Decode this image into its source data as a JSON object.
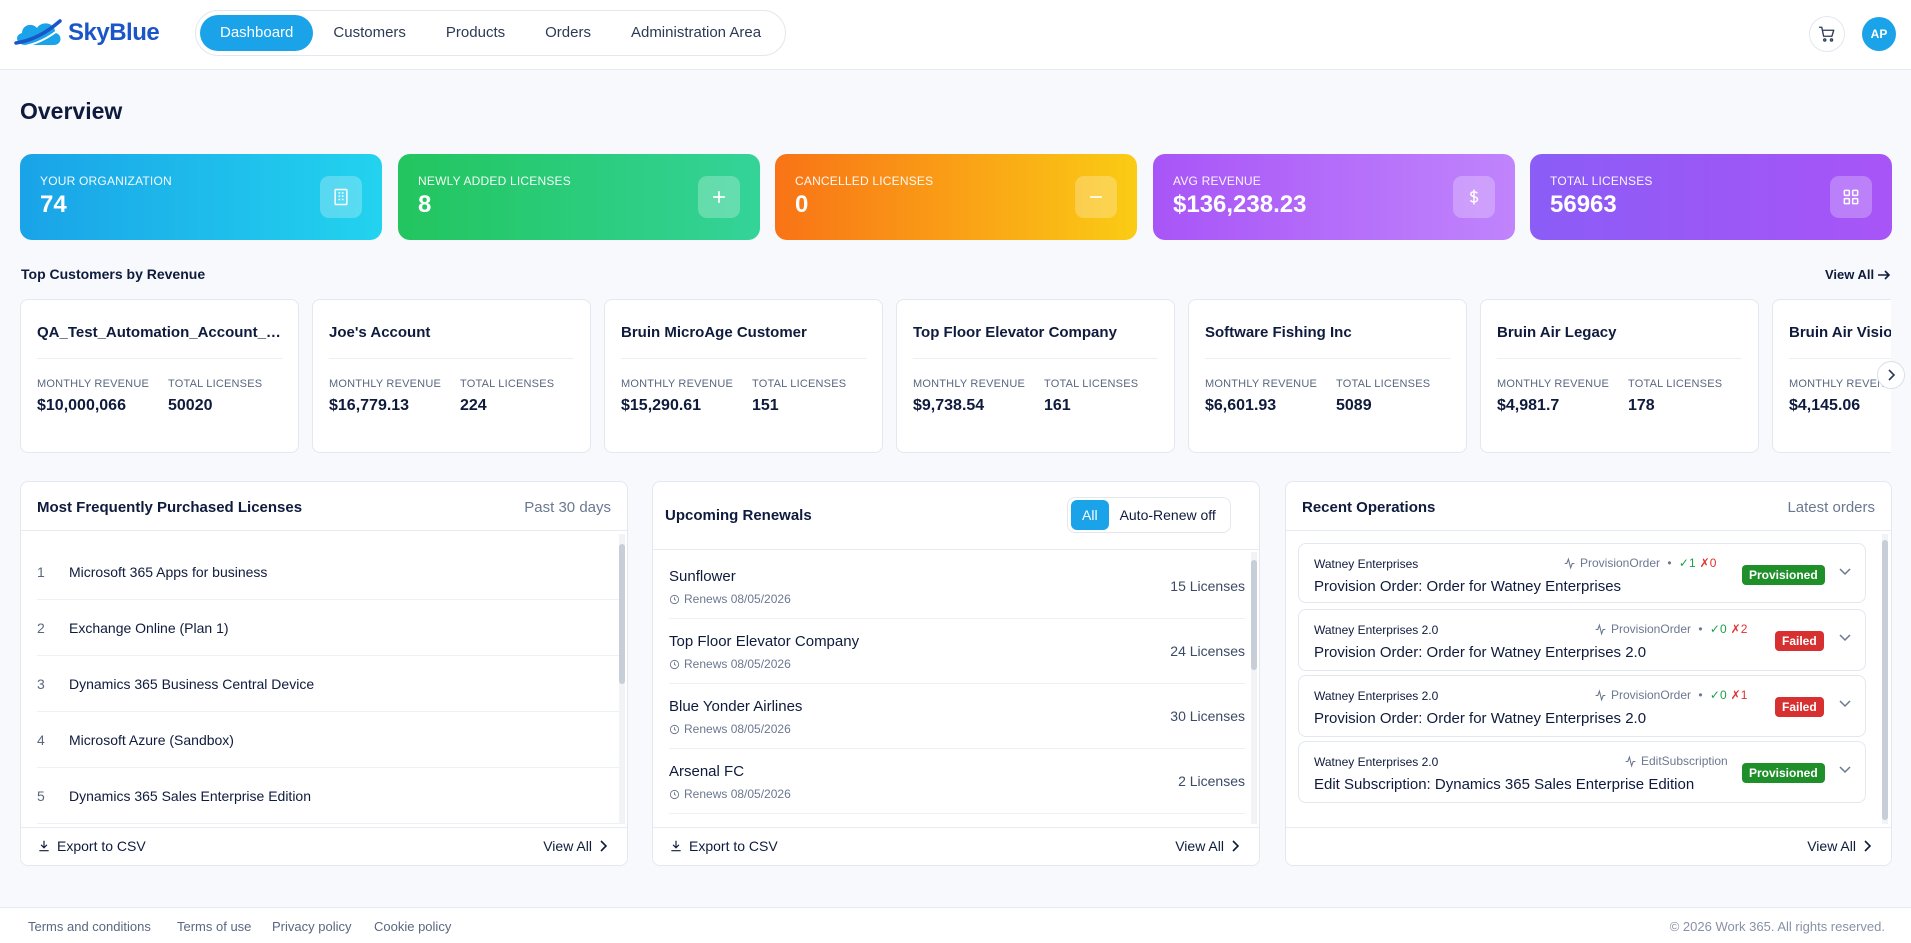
{
  "brand": {
    "name": "SkyBlue"
  },
  "nav": {
    "items": [
      {
        "label": "Dashboard",
        "active": true
      },
      {
        "label": "Customers",
        "active": false
      },
      {
        "label": "Products",
        "active": false
      },
      {
        "label": "Orders",
        "active": false
      },
      {
        "label": "Administration Area",
        "active": false
      }
    ]
  },
  "header": {
    "cart_icon": "cart-icon",
    "avatar_initials": "AP"
  },
  "page": {
    "title": "Overview"
  },
  "stats": [
    {
      "label": "Your Organization",
      "value": "74",
      "icon": "building-icon",
      "gradient": [
        "#1aa3e8",
        "#22d3ee"
      ]
    },
    {
      "label": "Newly Added Licenses",
      "value": "8",
      "icon": "plus-icon",
      "gradient": [
        "#22c55e",
        "#34d399"
      ]
    },
    {
      "label": "Cancelled Licenses",
      "value": "0",
      "icon": "minus-icon",
      "gradient": [
        "#f97316",
        "#facc15"
      ]
    },
    {
      "label": "Avg Revenue",
      "value": "$136,238.23",
      "icon": "dollar-icon",
      "gradient": [
        "#a855f7",
        "#c084fc"
      ]
    },
    {
      "label": "Total Licenses",
      "value": "56963",
      "icon": "grid-icon",
      "gradient": [
        "#8b5cf6",
        "#a855f7"
      ]
    }
  ],
  "top_customers": {
    "title": "Top Customers by Revenue",
    "view_all": "View All",
    "monthly_label": "Monthly Revenue",
    "licenses_label": "Total Licenses",
    "items": [
      {
        "name": "QA_Test_Automation_Account_New",
        "monthly": "$10,000,066",
        "licenses": "50020"
      },
      {
        "name": "Joe's Account",
        "monthly": "$16,779.13",
        "licenses": "224"
      },
      {
        "name": "Bruin MicroAge Customer",
        "monthly": "$15,290.61",
        "licenses": "151"
      },
      {
        "name": "Top Floor Elevator Company",
        "monthly": "$9,738.54",
        "licenses": "161"
      },
      {
        "name": "Software Fishing Inc",
        "monthly": "$6,601.93",
        "licenses": "5089"
      },
      {
        "name": "Bruin Air Legacy",
        "monthly": "$4,981.7",
        "licenses": "178"
      },
      {
        "name": "Bruin Air Vision",
        "monthly": "$4,145.06",
        "licenses": ""
      }
    ]
  },
  "licenses_panel": {
    "title": "Most Frequently Purchased Licenses",
    "period": "Past 30 days",
    "items": [
      {
        "rank": "1",
        "name": "Microsoft 365 Apps for business"
      },
      {
        "rank": "2",
        "name": "Exchange Online (Plan 1)"
      },
      {
        "rank": "3",
        "name": "Dynamics 365 Business Central Device"
      },
      {
        "rank": "4",
        "name": "Microsoft Azure (Sandbox)"
      },
      {
        "rank": "5",
        "name": "Dynamics 365 Sales Enterprise Edition"
      }
    ],
    "export": "Export to CSV",
    "view_all": "View All"
  },
  "renewals_panel": {
    "title": "Upcoming Renewals",
    "filters": [
      {
        "label": "All",
        "active": true
      },
      {
        "label": "Auto-Renew off",
        "active": false
      }
    ],
    "items": [
      {
        "name": "Sunflower",
        "date": "Renews 08/05/2026",
        "licenses": "15 Licenses"
      },
      {
        "name": "Top Floor Elevator Company",
        "date": "Renews 08/05/2026",
        "licenses": "24 Licenses"
      },
      {
        "name": "Blue Yonder Airlines",
        "date": "Renews 08/05/2026",
        "licenses": "30 Licenses"
      },
      {
        "name": "Arsenal FC",
        "date": "Renews 08/05/2026",
        "licenses": "2 Licenses"
      }
    ],
    "export": "Export to CSV",
    "view_all": "View All"
  },
  "operations_panel": {
    "title": "Recent Operations",
    "subtitle": "Latest orders",
    "items": [
      {
        "customer": "Watney Enterprises",
        "type": "ProvisionOrder",
        "ok": "✓1",
        "fail": "✗0",
        "title": "Provision Order: Order for Watney Enterprises",
        "status": "Provisioned",
        "status_color": "#1f8f2a"
      },
      {
        "customer": "Watney Enterprises 2.0",
        "type": "ProvisionOrder",
        "ok": "✓0",
        "fail": "✗2",
        "title": "Provision Order: Order for Watney Enterprises 2.0",
        "status": "Failed",
        "status_color": "#d63031"
      },
      {
        "customer": "Watney Enterprises 2.0",
        "type": "ProvisionOrder",
        "ok": "✓0",
        "fail": "✗1",
        "title": "Provision Order: Order for Watney Enterprises 2.0",
        "status": "Failed",
        "status_color": "#d63031"
      },
      {
        "customer": "Watney Enterprises 2.0",
        "type": "EditSubscription",
        "ok": "",
        "fail": "",
        "title": "Edit Subscription: Dynamics 365 Sales Enterprise Edition",
        "status": "Provisioned",
        "status_color": "#1f8f2a"
      }
    ],
    "view_all": "View All"
  },
  "footer": {
    "links": [
      "Terms and conditions",
      "Terms of use",
      "Privacy policy",
      "Cookie policy"
    ],
    "copyright": "© 2026 Work 365. All rights reserved."
  }
}
